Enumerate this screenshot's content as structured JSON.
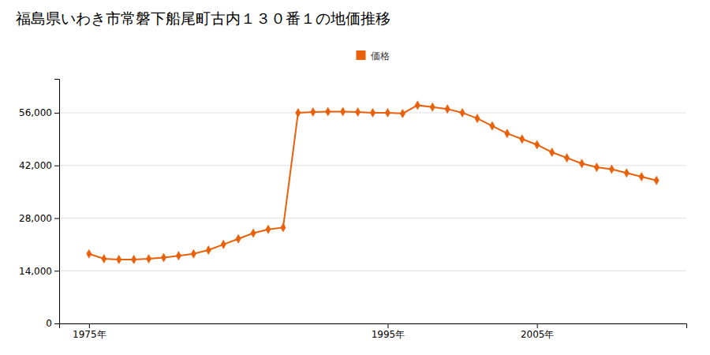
{
  "chart_data": {
    "type": "line",
    "title": "福島県いわき市常磐下船尾町古内１３０番１の地価推移",
    "x": [
      1975,
      1976,
      1977,
      1978,
      1979,
      1980,
      1981,
      1982,
      1983,
      1984,
      1985,
      1986,
      1987,
      1988,
      1989,
      1990,
      1991,
      1992,
      1993,
      1994,
      1995,
      1996,
      1997,
      1998,
      1999,
      2000,
      2001,
      2002,
      2003,
      2004,
      2005,
      2006,
      2007,
      2008,
      2009,
      2010,
      2011,
      2012,
      2013
    ],
    "series": [
      {
        "name": "価格",
        "color": "#E8600A",
        "marker": "diamond",
        "values": [
          18500,
          17200,
          17000,
          17000,
          17200,
          17500,
          18000,
          18500,
          19500,
          21000,
          22500,
          24000,
          25000,
          25500,
          56000,
          56200,
          56300,
          56300,
          56200,
          56000,
          56000,
          55800,
          58000,
          57500,
          57000,
          56000,
          54500,
          52500,
          50500,
          49000,
          47500,
          45500,
          44000,
          42500,
          41500,
          41000,
          40000,
          39000,
          38000
        ]
      }
    ],
    "xlim": [
      1973,
      2015
    ],
    "xticks": [
      {
        "value": 1975,
        "label": "1975年"
      },
      {
        "value": 1995,
        "label": "1995年"
      },
      {
        "value": 2005,
        "label": "2005年"
      }
    ],
    "ylim": [
      0,
      65000
    ],
    "yticks": [
      0,
      {
        "value": 14000,
        "label": "14,000"
      },
      {
        "value": 28000,
        "label": "28,000"
      },
      {
        "value": 42000,
        "label": "42,000"
      },
      {
        "value": 56000,
        "label": "56,000"
      }
    ],
    "grid": true,
    "legend": "top"
  }
}
